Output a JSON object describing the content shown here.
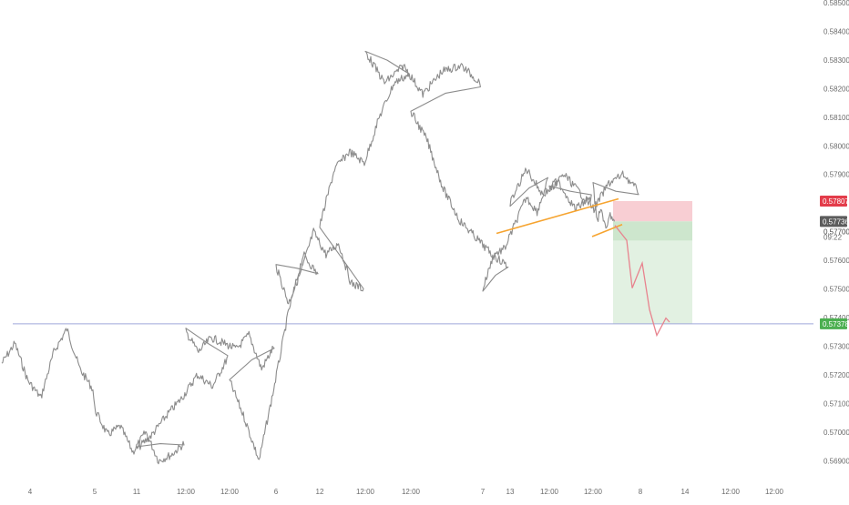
{
  "colors": {
    "price_line": "#8c8c8c",
    "trendline": "#f6a430",
    "stop_zone": "#f7c6cb",
    "target_zone": "#e2f1e2",
    "target_zone_dark": "#cde6cd",
    "projection_path": "#e8838e",
    "support_line": "#9fa8da",
    "badge_stop": "#e33c4a",
    "badge_current": "#5c5c5c",
    "badge_support": "#4caf50",
    "axis_text": "#6b6b6b"
  },
  "chart_data": {
    "type": "line",
    "title": "",
    "xlabel": "",
    "ylabel": "",
    "ylim": [
      0.5685,
      0.585
    ],
    "x_tick_labels": [
      "4",
      "5",
      "12:00",
      "6",
      "12:00",
      "7",
      "12:00",
      "8",
      "12:00",
      "11",
      "12:00",
      "12",
      "12:00",
      "13",
      "12:00",
      "14",
      "12:00"
    ],
    "y_tick_labels": [
      "0.58500",
      "0.58400",
      "0.58300",
      "0.58200",
      "0.58100",
      "0.58000",
      "0.57900",
      "0.57700",
      "0.57600",
      "0.57500",
      "0.57400",
      "0.57300",
      "0.57200",
      "0.57100",
      "0.57000",
      "0.56900"
    ],
    "y_tick_values": [
      0.585,
      0.584,
      0.583,
      0.582,
      0.581,
      0.58,
      0.579,
      0.577,
      0.576,
      0.575,
      0.574,
      0.573,
      0.572,
      0.571,
      0.57,
      0.569
    ],
    "series": [
      {
        "points": [
          [
            "4",
            0.5724
          ],
          [
            "4",
            0.5731
          ],
          [
            "4",
            0.5718
          ],
          [
            "4",
            0.5712
          ],
          [
            "4",
            0.5728
          ],
          [
            "4",
            0.5736
          ],
          [
            "4",
            0.5722
          ],
          [
            "4",
            0.5715
          ],
          [
            "5",
            0.5708
          ],
          [
            "5",
            0.5699
          ],
          [
            "5",
            0.5702
          ],
          [
            "5",
            0.5693
          ],
          [
            "5",
            0.57
          ],
          [
            "5",
            0.569
          ],
          [
            "5",
            0.5692
          ],
          [
            "5",
            0.5696
          ],
          [
            "5 12:00",
            0.5694
          ],
          [
            "5 12:00",
            0.5699
          ],
          [
            "5 12:00",
            0.5706
          ],
          [
            "5 12:00",
            0.5712
          ],
          [
            "5 12:00",
            0.572
          ],
          [
            "5 12:00",
            0.5716
          ],
          [
            "5 12:00",
            0.5726
          ],
          [
            "6",
            0.5735
          ],
          [
            "6",
            0.5728
          ],
          [
            "6",
            0.5733
          ],
          [
            "6",
            0.5731
          ],
          [
            "6",
            0.5729
          ],
          [
            "6",
            0.5734
          ],
          [
            "6",
            0.5722
          ],
          [
            "6",
            0.573
          ],
          [
            "6 12:00",
            0.5718
          ],
          [
            "6 12:00",
            0.5705
          ],
          [
            "6 12:00",
            0.569
          ],
          [
            "6 12:00",
            0.5715
          ],
          [
            "6 12:00",
            0.5742
          ],
          [
            "6 12:00",
            0.5762
          ],
          [
            "6 12:00",
            0.5755
          ],
          [
            "7",
            0.5758
          ],
          [
            "7",
            0.5745
          ],
          [
            "7",
            0.5756
          ],
          [
            "7",
            0.577
          ],
          [
            "7",
            0.5762
          ],
          [
            "7",
            0.5766
          ],
          [
            "7",
            0.5752
          ],
          [
            "7",
            0.575
          ],
          [
            "7 12:00",
            0.5772
          ],
          [
            "7 12:00",
            0.5792
          ],
          [
            "7 12:00",
            0.5798
          ],
          [
            "7 12:00",
            0.5794
          ],
          [
            "7 12:00",
            0.581
          ],
          [
            "7 12:00",
            0.5822
          ],
          [
            "7 12:00",
            0.5825
          ],
          [
            "8",
            0.5833
          ],
          [
            "8",
            0.5822
          ],
          [
            "8",
            0.5828
          ],
          [
            "8",
            0.5818
          ],
          [
            "8",
            0.5826
          ],
          [
            "8",
            0.5828
          ],
          [
            "8",
            0.5822
          ],
          [
            "8 12:00",
            0.5812
          ],
          [
            "8 12:00",
            0.5802
          ],
          [
            "8 12:00",
            0.5785
          ],
          [
            "8 12:00",
            0.5774
          ],
          [
            "8 12:00",
            0.5768
          ],
          [
            "8 12:00",
            0.5762
          ],
          [
            "8 12:00",
            0.5758
          ],
          [
            "11",
            0.575
          ],
          [
            "11",
            0.5762
          ],
          [
            "11",
            0.5764
          ],
          [
            "11",
            0.5773
          ],
          [
            "11",
            0.5782
          ],
          [
            "11",
            0.5777
          ],
          [
            "11",
            0.5788
          ],
          [
            "11 12:00",
            0.578
          ],
          [
            "11 12:00",
            0.5792
          ],
          [
            "11 12:00",
            0.5783
          ],
          [
            "11 12:00",
            0.5787
          ],
          [
            "11 12:00",
            0.5778
          ],
          [
            "11 12:00",
            0.5782
          ],
          [
            "12",
            0.5785
          ],
          [
            "12",
            0.579
          ],
          [
            "12",
            0.5784
          ],
          [
            "12",
            0.5778
          ],
          [
            "12",
            0.5787
          ],
          [
            "12",
            0.579
          ],
          [
            "12",
            0.5784
          ],
          [
            "12 12:00",
            0.5786
          ],
          [
            "12 12:00",
            0.5774
          ],
          [
            "12 12:00",
            0.5778
          ],
          [
            "12 12:00",
            0.577
          ],
          [
            "12 12:00",
            0.5776
          ],
          [
            "12 12:00",
            0.57736
          ]
        ]
      }
    ],
    "trendlines": [
      {
        "from": [
          "11",
          0.57694
        ],
        "to": [
          "12 12:00",
          0.57815
        ]
      },
      {
        "from": [
          "12 12:00",
          0.57683
        ],
        "to": [
          "12 12:00",
          0.57725
        ]
      }
    ],
    "horizontal_lines": [
      0.57378
    ],
    "position_tool": {
      "entry": 0.57736,
      "stop": 0.57807,
      "target": 0.57378,
      "from_x": "12 12:00",
      "to_x": "13 12:00"
    },
    "projection_path": [
      [
        "12 12:00",
        0.57722
      ],
      [
        "13",
        0.5767
      ],
      [
        "13",
        0.57503
      ],
      [
        "13",
        0.5759
      ],
      [
        "13",
        0.57428
      ],
      [
        "13 12:00",
        0.57338
      ],
      [
        "13 12:00",
        0.57398
      ],
      [
        "13 12:00",
        0.57384
      ]
    ],
    "price_badges": {
      "stop": "0.57807",
      "current": "0.57736",
      "countdown": "09:22",
      "support": "0.57378",
      "hidden_tick": "0.57700"
    },
    "grid": false,
    "legend": "none"
  }
}
